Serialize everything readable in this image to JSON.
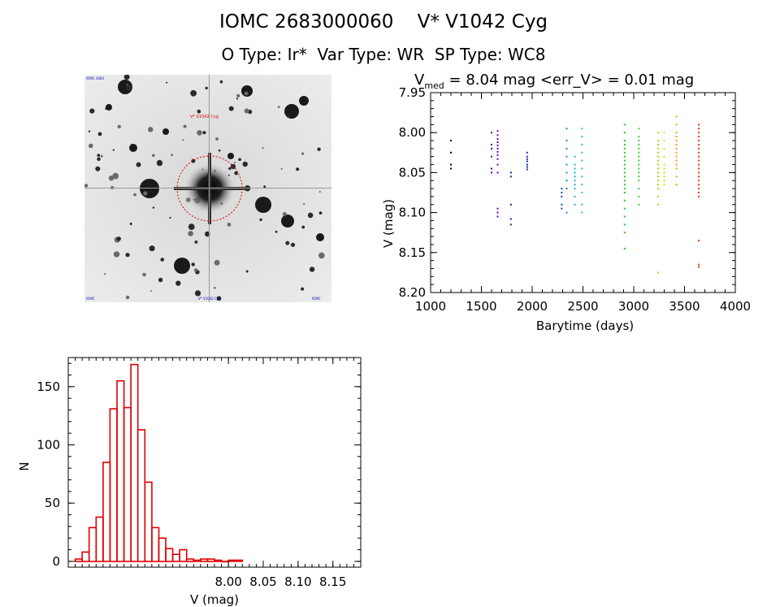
{
  "header": {
    "star_id": "IOMC 2683000060",
    "star_name": "V* V1042 Cyg",
    "o_type": "O Type: Ir*",
    "var_type": "Var Type: WR",
    "sp_type": "SP Type: WC8"
  },
  "image": {
    "target_label": "V* V1042 Cyg",
    "corner_tl": "IOMC 2683",
    "corner_bl": "IOMC",
    "bottom_label": "V* V1042 Cyg",
    "corner_br": "IOMC"
  },
  "colors": {
    "hist_bar": "#e00000",
    "target_circle": "#e00000",
    "axis": "#000000"
  },
  "chart_data": [
    {
      "type": "scatter",
      "title_prefix": "V",
      "title_subscript": "med",
      "title_rest": " = 8.04 mag <err_V> = 0.01 mag",
      "xlabel": "Barytime (days)",
      "ylabel": "V (mag)",
      "xlim": [
        1000,
        4000
      ],
      "ylim": [
        8.2,
        7.95
      ],
      "y_inverted": true,
      "xticks": [
        "1000",
        "1500",
        "2000",
        "2500",
        "3000",
        "3500",
        "4000"
      ],
      "yticks": [
        "7.95",
        "8.00",
        "8.05",
        "8.10",
        "8.15",
        "8.20"
      ],
      "groups": [
        {
          "x": [
            1200,
            1200,
            1200,
            1200
          ],
          "y": [
            8.01,
            8.025,
            8.04,
            8.045
          ],
          "color": "#000000"
        },
        {
          "x": [
            1600,
            1600,
            1600,
            1600,
            1600,
            1600
          ],
          "y": [
            8.0,
            8.015,
            8.02,
            8.03,
            8.045,
            8.05
          ],
          "color": "#5a008c"
        },
        {
          "x": [
            1660,
            1660,
            1660,
            1660,
            1660,
            1660,
            1660,
            1660,
            1660,
            1660,
            1660,
            1660,
            1660,
            1660
          ],
          "y": [
            7.998,
            8.003,
            8.008,
            8.012,
            8.016,
            8.02,
            8.024,
            8.028,
            8.033,
            8.04,
            8.05,
            8.095,
            8.1,
            8.105
          ],
          "color": "#6a00a8"
        },
        {
          "x": [
            1790,
            1790,
            1790,
            1790,
            1790
          ],
          "y": [
            8.05,
            8.055,
            8.09,
            8.108,
            8.115
          ],
          "color": "#1c1c9c"
        },
        {
          "x": [
            1950,
            1950,
            1950,
            1950,
            1950,
            1950,
            1950
          ],
          "y": [
            8.025,
            8.03,
            8.033,
            8.036,
            8.04,
            8.043,
            8.046
          ],
          "color": "#1428a8"
        },
        {
          "x": [
            2290,
            2290,
            2290,
            2290,
            2290
          ],
          "y": [
            8.07,
            8.075,
            8.08,
            8.09,
            8.095
          ],
          "color": "#1450b4"
        },
        {
          "x": [
            2340,
            2340,
            2340,
            2340,
            2340,
            2340,
            2340,
            2340,
            2340
          ],
          "y": [
            7.995,
            8.01,
            8.02,
            8.03,
            8.04,
            8.05,
            8.06,
            8.07,
            8.1
          ],
          "color": "#0e88c8"
        },
        {
          "x": [
            2420,
            2420,
            2420,
            2420,
            2420,
            2420,
            2420,
            2420,
            2420,
            2420
          ],
          "y": [
            8.03,
            8.04,
            8.045,
            8.05,
            8.055,
            8.06,
            8.065,
            8.07,
            8.08,
            8.09
          ],
          "color": "#18b4d0"
        },
        {
          "x": [
            2490,
            2490,
            2490,
            2490,
            2490,
            2490,
            2490,
            2490,
            2490,
            2490,
            2490
          ],
          "y": [
            7.995,
            8.005,
            8.015,
            8.025,
            8.035,
            8.045,
            8.055,
            8.065,
            8.075,
            8.09,
            8.1
          ],
          "color": "#22d0b8"
        },
        {
          "x": [
            2910,
            2910,
            2910,
            2910,
            2910,
            2910,
            2910,
            2910,
            2910,
            2910,
            2910,
            2910,
            2910,
            2910,
            2910,
            2910,
            2910,
            2910,
            2910,
            2910,
            2910,
            2910
          ],
          "y": [
            7.99,
            8.0,
            8.01,
            8.015,
            8.02,
            8.025,
            8.03,
            8.035,
            8.04,
            8.045,
            8.05,
            8.055,
            8.06,
            8.065,
            8.07,
            8.075,
            8.085,
            8.095,
            8.105,
            8.115,
            8.125,
            8.145
          ],
          "color": "#20c820"
        },
        {
          "x": [
            3050,
            3050,
            3050,
            3050,
            3050,
            3050,
            3050,
            3050,
            3050,
            3050,
            3050,
            3050,
            3050,
            3050,
            3050,
            3050
          ],
          "y": [
            7.995,
            8.005,
            8.01,
            8.015,
            8.02,
            8.025,
            8.03,
            8.035,
            8.04,
            8.045,
            8.05,
            8.055,
            8.06,
            8.07,
            8.08,
            8.09
          ],
          "color": "#40d040"
        },
        {
          "x": [
            3240,
            3240,
            3240,
            3240,
            3240,
            3240,
            3240,
            3240,
            3240,
            3240,
            3240,
            3240,
            3240,
            3240,
            3240,
            3240,
            3240
          ],
          "y": [
            8.0,
            8.01,
            8.015,
            8.02,
            8.025,
            8.03,
            8.035,
            8.04,
            8.045,
            8.05,
            8.055,
            8.06,
            8.065,
            8.07,
            8.08,
            8.09,
            8.175
          ],
          "color": "#9ce010"
        },
        {
          "x": [
            3300,
            3300,
            3300,
            3300,
            3300,
            3300,
            3300,
            3300,
            3300,
            3300
          ],
          "y": [
            8.0,
            8.01,
            8.02,
            8.03,
            8.04,
            8.045,
            8.05,
            8.055,
            8.06,
            8.065
          ],
          "color": "#d8e000"
        },
        {
          "x": [
            3420,
            3420,
            3420,
            3420,
            3420,
            3420,
            3420,
            3420,
            3420,
            3420,
            3420,
            3420,
            3420,
            3420
          ],
          "y": [
            7.98,
            7.99,
            8.0,
            8.005,
            8.01,
            8.015,
            8.02,
            8.025,
            8.03,
            8.035,
            8.04,
            8.045,
            8.055,
            8.065
          ],
          "color": "#f0a000"
        },
        {
          "x": [
            3640,
            3640,
            3640,
            3640,
            3640,
            3640,
            3640,
            3640,
            3640,
            3640,
            3640,
            3640,
            3640,
            3640,
            3640,
            3640,
            3640,
            3640,
            3640,
            3640,
            3640,
            3640
          ],
          "y": [
            7.99,
            7.995,
            8.0,
            8.005,
            8.01,
            8.015,
            8.02,
            8.025,
            8.03,
            8.035,
            8.04,
            8.045,
            8.05,
            8.055,
            8.06,
            8.065,
            8.07,
            8.075,
            8.08,
            8.135,
            8.165,
            8.168
          ],
          "color": "#e04000"
        }
      ]
    },
    {
      "type": "bar",
      "subtype": "histogram",
      "xlabel": "V (mag)",
      "ylabel": "N",
      "xlim": [
        7.77,
        8.19
      ],
      "ylim": [
        -5,
        175
      ],
      "xticks": [
        "8.00",
        "8.05",
        "8.10",
        "8.15"
      ],
      "yticks": [
        "0",
        "50",
        "100",
        "150"
      ],
      "bin_width": 0.01,
      "bin_start": 7.78,
      "values": [
        2,
        8,
        29,
        38,
        85,
        131,
        155,
        132,
        169,
        113,
        68,
        29,
        20,
        11,
        6,
        10,
        2,
        1,
        2,
        2,
        1,
        0,
        1,
        1
      ]
    }
  ]
}
